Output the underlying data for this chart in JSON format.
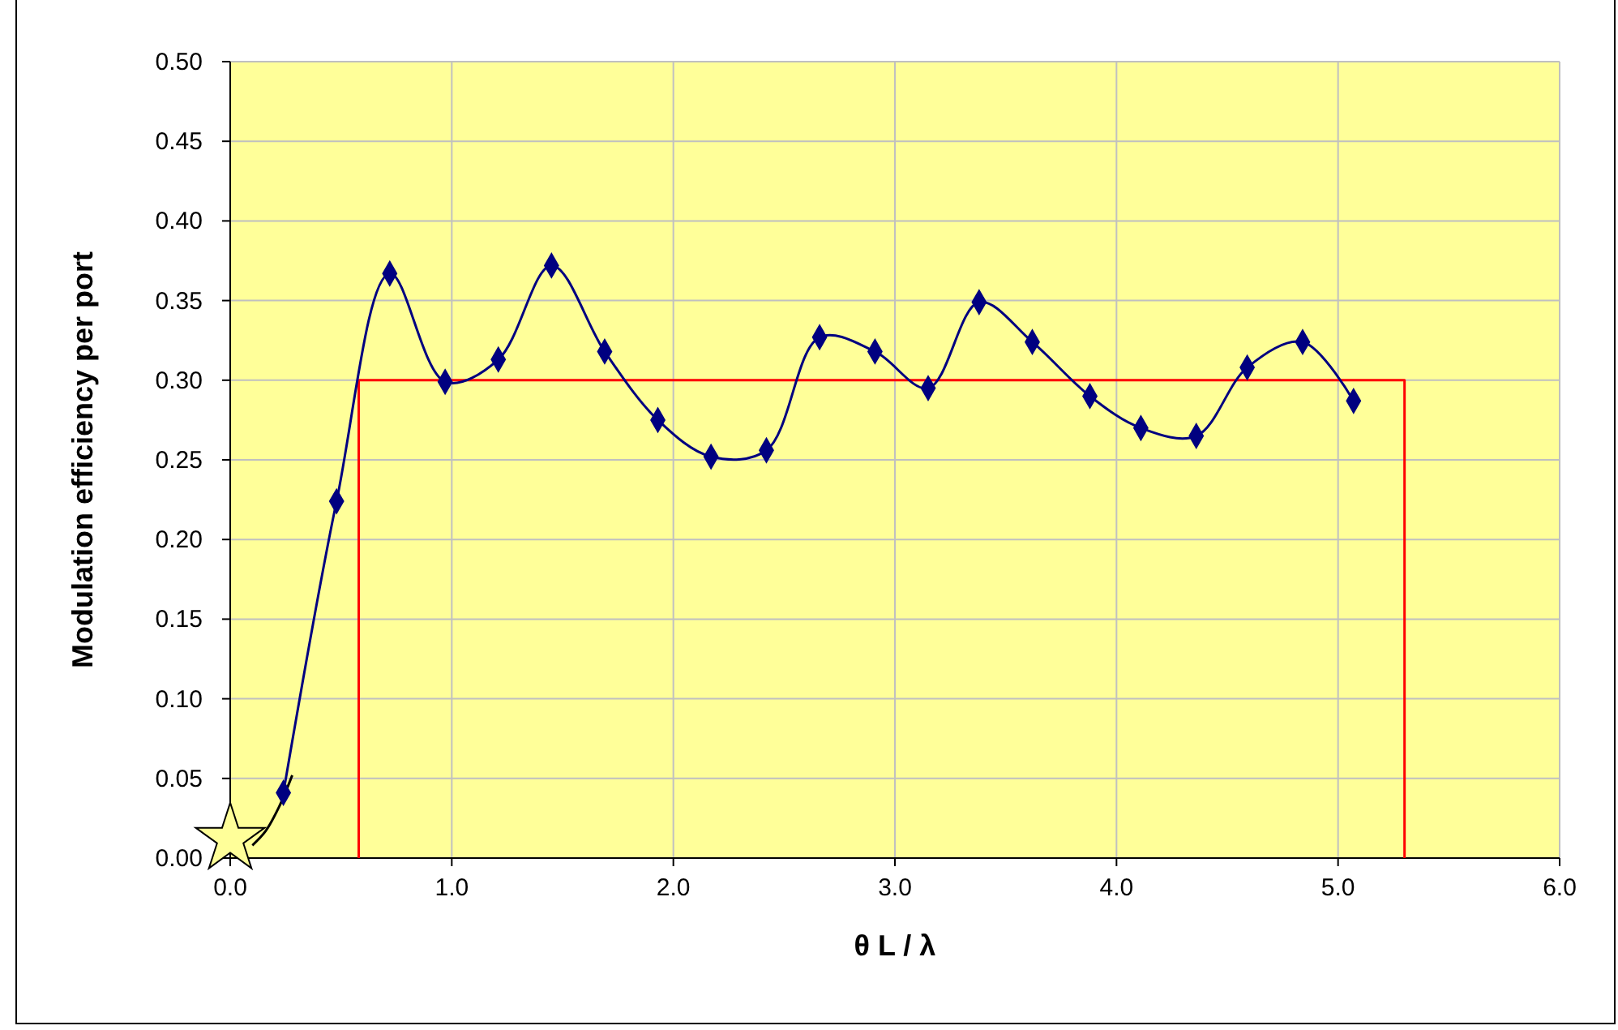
{
  "chart_data": {
    "type": "line",
    "xlabel": "θ L / λ",
    "ylabel": "Modulation efficiency per port",
    "xlim": [
      0,
      6
    ],
    "ylim": [
      0,
      0.5
    ],
    "xticks": [
      {
        "value": 0,
        "label": "0.0"
      },
      {
        "value": 1,
        "label": "1.0"
      },
      {
        "value": 2,
        "label": "2.0"
      },
      {
        "value": 3,
        "label": "3.0"
      },
      {
        "value": 4,
        "label": "4.0"
      },
      {
        "value": 5,
        "label": "5.0"
      },
      {
        "value": 6,
        "label": "6.0"
      }
    ],
    "yticks": [
      {
        "value": 0,
        "label": "0.00"
      },
      {
        "value": 0.05,
        "label": "0.05"
      },
      {
        "value": 0.1,
        "label": "0.10"
      },
      {
        "value": 0.15,
        "label": "0.15"
      },
      {
        "value": 0.2,
        "label": "0.20"
      },
      {
        "value": 0.25,
        "label": "0.25"
      },
      {
        "value": 0.3,
        "label": "0.30"
      },
      {
        "value": 0.35,
        "label": "0.35"
      },
      {
        "value": 0.4,
        "label": "0.40"
      },
      {
        "value": 0.45,
        "label": "0.45"
      },
      {
        "value": 0.5,
        "label": "0.50"
      }
    ],
    "grid": true,
    "series": [
      {
        "color": "#ff0000",
        "marker": "none",
        "x": [
          0.58,
          0.58,
          5.3,
          5.3
        ],
        "values": [
          0,
          0.3,
          0.3,
          0
        ]
      },
      {
        "color": "#000000",
        "marker": "none",
        "x": [
          0.1,
          0.16,
          0.22,
          0.28
        ],
        "values": [
          0.008,
          0.017,
          0.032,
          0.052
        ]
      },
      {
        "color": "#000080",
        "marker": "diamond",
        "x": [
          0.24,
          0.48,
          0.72,
          0.97,
          1.21,
          1.45,
          1.69,
          1.93,
          2.17,
          2.42,
          2.66,
          2.91,
          3.15,
          3.38,
          3.62,
          3.88,
          4.11,
          4.36,
          4.59,
          4.84,
          5.07
        ],
        "values": [
          0.041,
          0.224,
          0.367,
          0.299,
          0.313,
          0.372,
          0.318,
          0.275,
          0.252,
          0.256,
          0.327,
          0.318,
          0.295,
          0.349,
          0.324,
          0.29,
          0.27,
          0.265,
          0.308,
          0.324,
          0.287
        ]
      },
      {
        "type": "scatter",
        "color": "#ffff99",
        "marker": "star",
        "x": [
          0.0
        ],
        "values": [
          0.012
        ]
      }
    ]
  }
}
